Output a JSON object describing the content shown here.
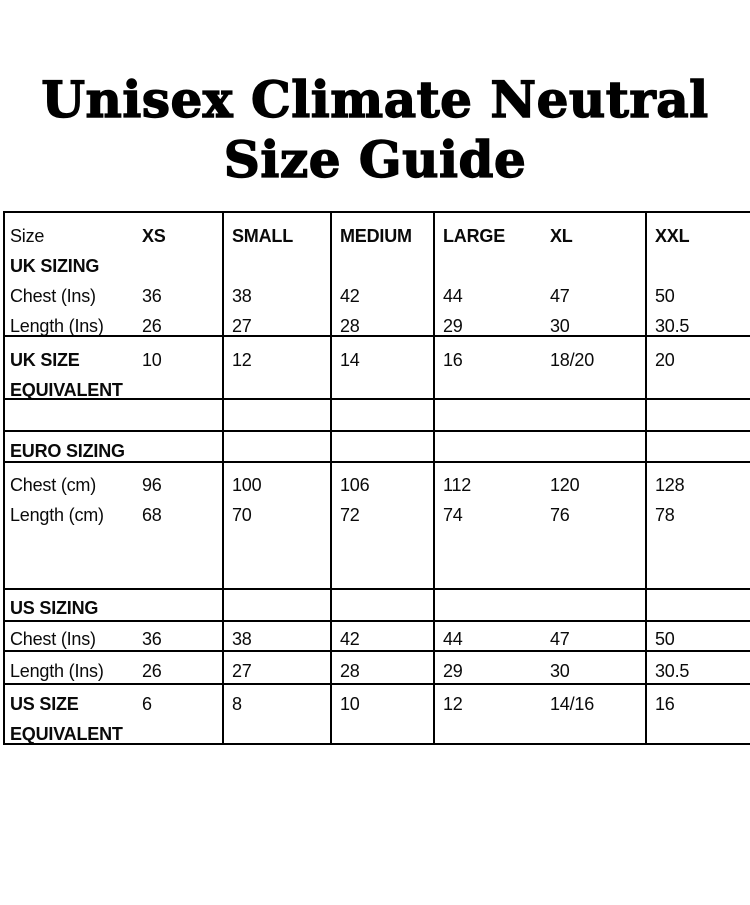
{
  "page": {
    "background_color": "#ffffff",
    "text_color": "#000000",
    "border_color": "#000000"
  },
  "title": {
    "line1": "Unisex Climate Neutral",
    "line2": "Size Guide"
  },
  "table": {
    "header": {
      "label": "Size",
      "xs": "XS",
      "small": "SMALL",
      "medium": "MEDIUM",
      "large": "LARGE",
      "xl": "XL",
      "xxl": "XXL"
    },
    "uk": {
      "section": "UK SIZING",
      "chest": {
        "label": "Chest (Ins)",
        "xs": "36",
        "small": "38",
        "medium": "42",
        "large": "44",
        "xl": "47",
        "xxl": "50"
      },
      "length": {
        "label": "Length (Ins)",
        "xs": "26",
        "small": "27",
        "medium": "28",
        "large": "29",
        "xl": "30",
        "xxl": "30.5"
      },
      "equivalent": {
        "label_line1": "UK SIZE",
        "label_line2": "EQUIVALENT",
        "xs": "10",
        "small": "12",
        "medium": "14",
        "large": "16",
        "xl": "18/20",
        "xxl": "20"
      }
    },
    "euro": {
      "section": "EURO SIZING",
      "chest": {
        "label": "Chest (cm)",
        "xs": "96",
        "small": "100",
        "medium": "106",
        "large": "112",
        "xl": "120",
        "xxl": "128"
      },
      "length": {
        "label": "Length (cm)",
        "xs": "68",
        "small": "70",
        "medium": "72",
        "large": "74",
        "xl": "76",
        "xxl": "78"
      }
    },
    "us": {
      "section": "US SIZING",
      "chest": {
        "label": "Chest (Ins)",
        "xs": "36",
        "small": "38",
        "medium": "42",
        "large": "44",
        "xl": "47",
        "xxl": "50"
      },
      "length": {
        "label": "Length (Ins)",
        "xs": "26",
        "small": "27",
        "medium": "28",
        "large": "29",
        "xl": "30",
        "xxl": "30.5"
      },
      "equivalent": {
        "label_line1": "US SIZE",
        "label_line2": "EQUIVALENT",
        "xs": "6",
        "small": "8",
        "medium": "10",
        "large": "12",
        "xl": "14/16",
        "xxl": "16"
      }
    }
  }
}
